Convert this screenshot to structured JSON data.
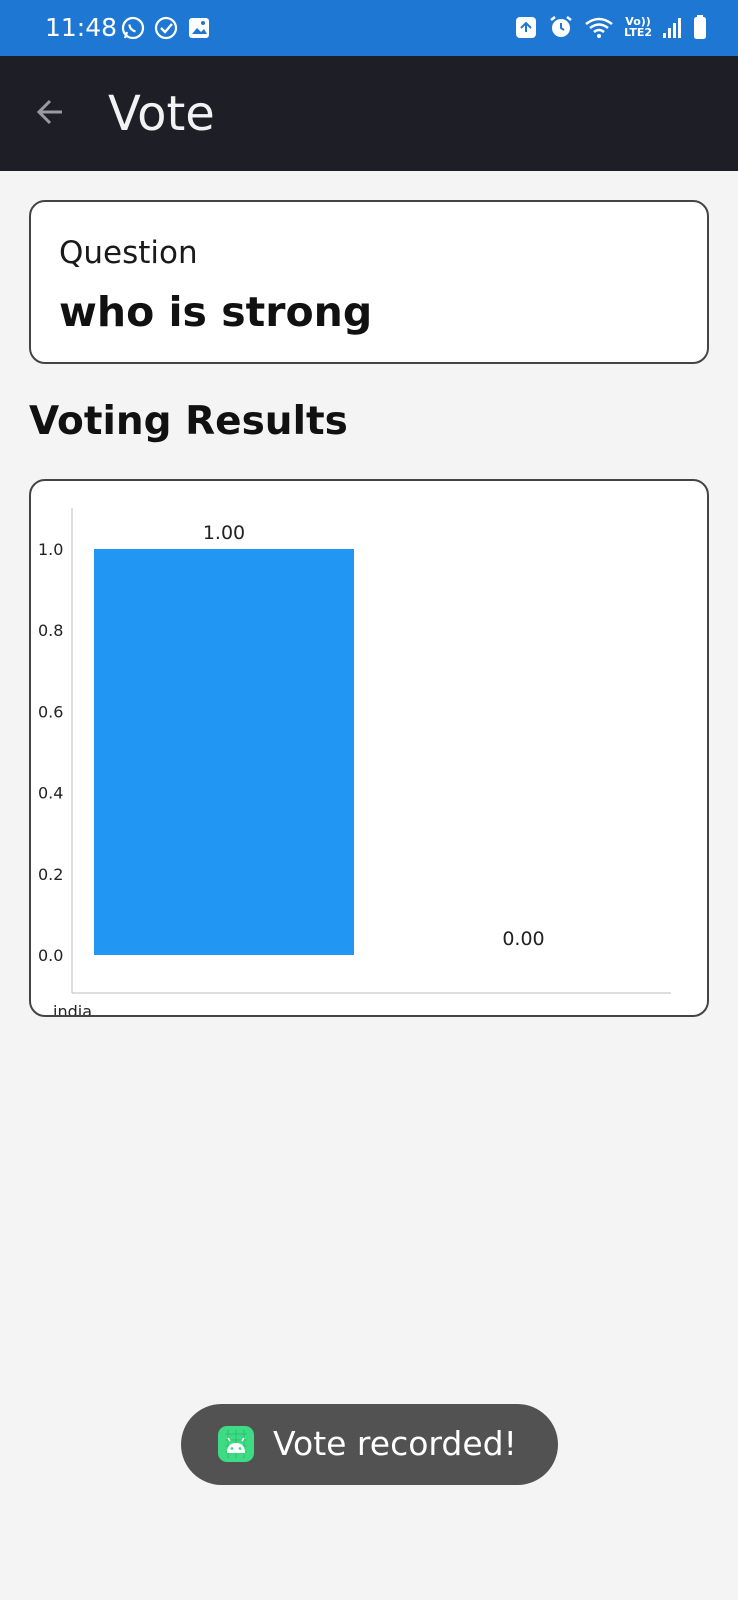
{
  "status_bar": {
    "time": "11:48",
    "left_icons": [
      "whatsapp-icon",
      "check-circle-icon",
      "image-icon"
    ],
    "right_icons": [
      "recycle-icon",
      "alarm-icon",
      "wifi-icon",
      "signal-icon",
      "battery-icon"
    ],
    "network_label_top": "Vo))",
    "network_label_bottom": "LTE2"
  },
  "app_bar": {
    "title": "Vote",
    "back_icon": "arrow-back-icon",
    "background": "#1e1e26"
  },
  "question_card": {
    "label": "Question",
    "text": "who is strong"
  },
  "results": {
    "heading": "Voting Results"
  },
  "chart_data": {
    "type": "bar",
    "categories": [
      "india",
      ""
    ],
    "values": [
      1.0,
      0.0
    ],
    "data_labels": [
      "1.00",
      "0.00"
    ],
    "yticks": [
      "0.0",
      "0.2",
      "0.4",
      "0.6",
      "0.8",
      "1.0"
    ],
    "ylim": [
      0,
      1.0
    ],
    "bar_color": "#2196f3",
    "grid": false,
    "legend": "none"
  },
  "toast": {
    "text": "Vote recorded!",
    "icon": "android-icon"
  },
  "colors": {
    "status_bar": "#1f77d4",
    "background": "#f4f4f4",
    "accent": "#2196f3"
  }
}
